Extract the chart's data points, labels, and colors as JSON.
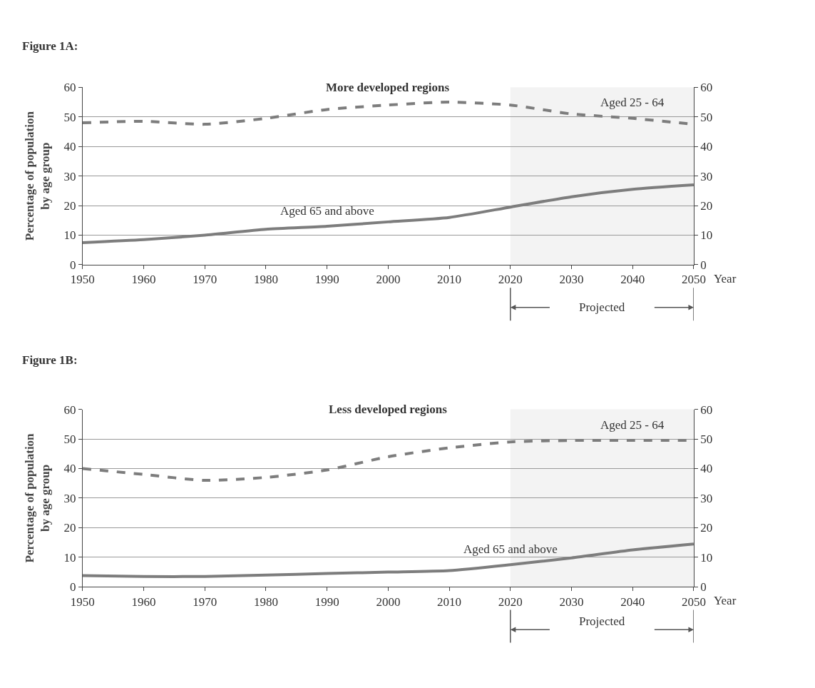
{
  "chart_data": [
    {
      "type": "line",
      "title": "Figure 1A:",
      "subtitle": "More developed regions",
      "ylabel": "Percentage of population by age group",
      "xlabel": "Year",
      "x": [
        1950,
        1960,
        1970,
        1980,
        1990,
        2000,
        2010,
        2020,
        2030,
        2040,
        2050
      ],
      "series": [
        {
          "name": "Aged 25 - 64",
          "color": "#7d7d7d",
          "line_style": "dashed",
          "values": [
            48,
            48.5,
            47.5,
            49.5,
            52.5,
            54,
            55,
            54,
            51,
            49.5,
            47.5
          ]
        },
        {
          "name": "Aged 65 and above",
          "color": "#7d7d7d",
          "line_style": "solid",
          "values": [
            7.5,
            8.5,
            10,
            12,
            13,
            14.5,
            16,
            19.5,
            23,
            25.5,
            27
          ]
        }
      ],
      "xlim": [
        1950,
        2050
      ],
      "xticks": [
        1950,
        1960,
        1970,
        1980,
        1990,
        2000,
        2010,
        2020,
        2030,
        2040,
        2050
      ],
      "ylim": [
        0,
        60
      ],
      "yticks": [
        0,
        10,
        20,
        30,
        40,
        50,
        60
      ],
      "y2lim": [
        0,
        60
      ],
      "y2ticks": [
        0,
        10,
        20,
        30,
        40,
        50,
        60
      ],
      "bands": [
        {
          "axis": "x",
          "from": 2020,
          "to": 2050,
          "label": "Projected",
          "color": "#555555"
        }
      ],
      "grid": "y",
      "legend": false,
      "marker": "none"
    },
    {
      "type": "line",
      "title": "Figure 1B:",
      "subtitle": "Less developed regions",
      "ylabel": "Percentage of population by age group",
      "xlabel": "Year",
      "x": [
        1950,
        1960,
        1970,
        1980,
        1990,
        2000,
        2010,
        2020,
        2030,
        2040,
        2050
      ],
      "series": [
        {
          "name": "Aged 25 - 64",
          "color": "#7d7d7d",
          "line_style": "dashed",
          "values": [
            40,
            38,
            36,
            37,
            39.5,
            44,
            47,
            49,
            49.5,
            49.5,
            49.5
          ]
        },
        {
          "name": "Aged 65 and above",
          "color": "#7d7d7d",
          "line_style": "solid",
          "values": [
            3.8,
            3.5,
            3.5,
            4,
            4.5,
            5,
            5.5,
            7.5,
            9.8,
            12.5,
            14.5
          ]
        }
      ],
      "xlim": [
        1950,
        2050
      ],
      "xticks": [
        1950,
        1960,
        1970,
        1980,
        1990,
        2000,
        2010,
        2020,
        2030,
        2040,
        2050
      ],
      "ylim": [
        0,
        60
      ],
      "yticks": [
        0,
        10,
        20,
        30,
        40,
        50,
        60
      ],
      "y2lim": [
        0,
        60
      ],
      "y2ticks": [
        0,
        10,
        20,
        30,
        40,
        50,
        60
      ],
      "bands": [
        {
          "axis": "x",
          "from": 2020,
          "to": 2050,
          "label": "Projected",
          "color": "#555555"
        }
      ],
      "grid": "y",
      "legend": false,
      "marker": "none"
    }
  ]
}
